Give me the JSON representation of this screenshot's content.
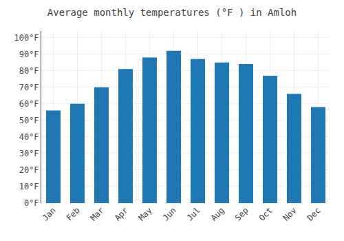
{
  "chart_data": {
    "type": "bar",
    "title": "Average monthly temperatures (°F ) in Amloh",
    "categories": [
      "Jan",
      "Feb",
      "Mar",
      "Apr",
      "May",
      "Jun",
      "Jul",
      "Aug",
      "Sep",
      "Oct",
      "Nov",
      "Dec"
    ],
    "values": [
      56,
      60,
      70,
      81,
      88,
      92,
      87,
      85,
      84,
      77,
      66,
      58
    ],
    "ylim": [
      0,
      104
    ],
    "yticks": [
      {
        "value": 0,
        "label": "0°F"
      },
      {
        "value": 10,
        "label": "10°F"
      },
      {
        "value": 20,
        "label": "20°F"
      },
      {
        "value": 30,
        "label": "30°F"
      },
      {
        "value": 40,
        "label": "40°F"
      },
      {
        "value": 50,
        "label": "50°F"
      },
      {
        "value": 60,
        "label": "60°F"
      },
      {
        "value": 70,
        "label": "70°F"
      },
      {
        "value": 80,
        "label": "80°F"
      },
      {
        "value": 90,
        "label": "90°F"
      },
      {
        "value": 100,
        "label": "100°F"
      }
    ],
    "grid": true
  }
}
